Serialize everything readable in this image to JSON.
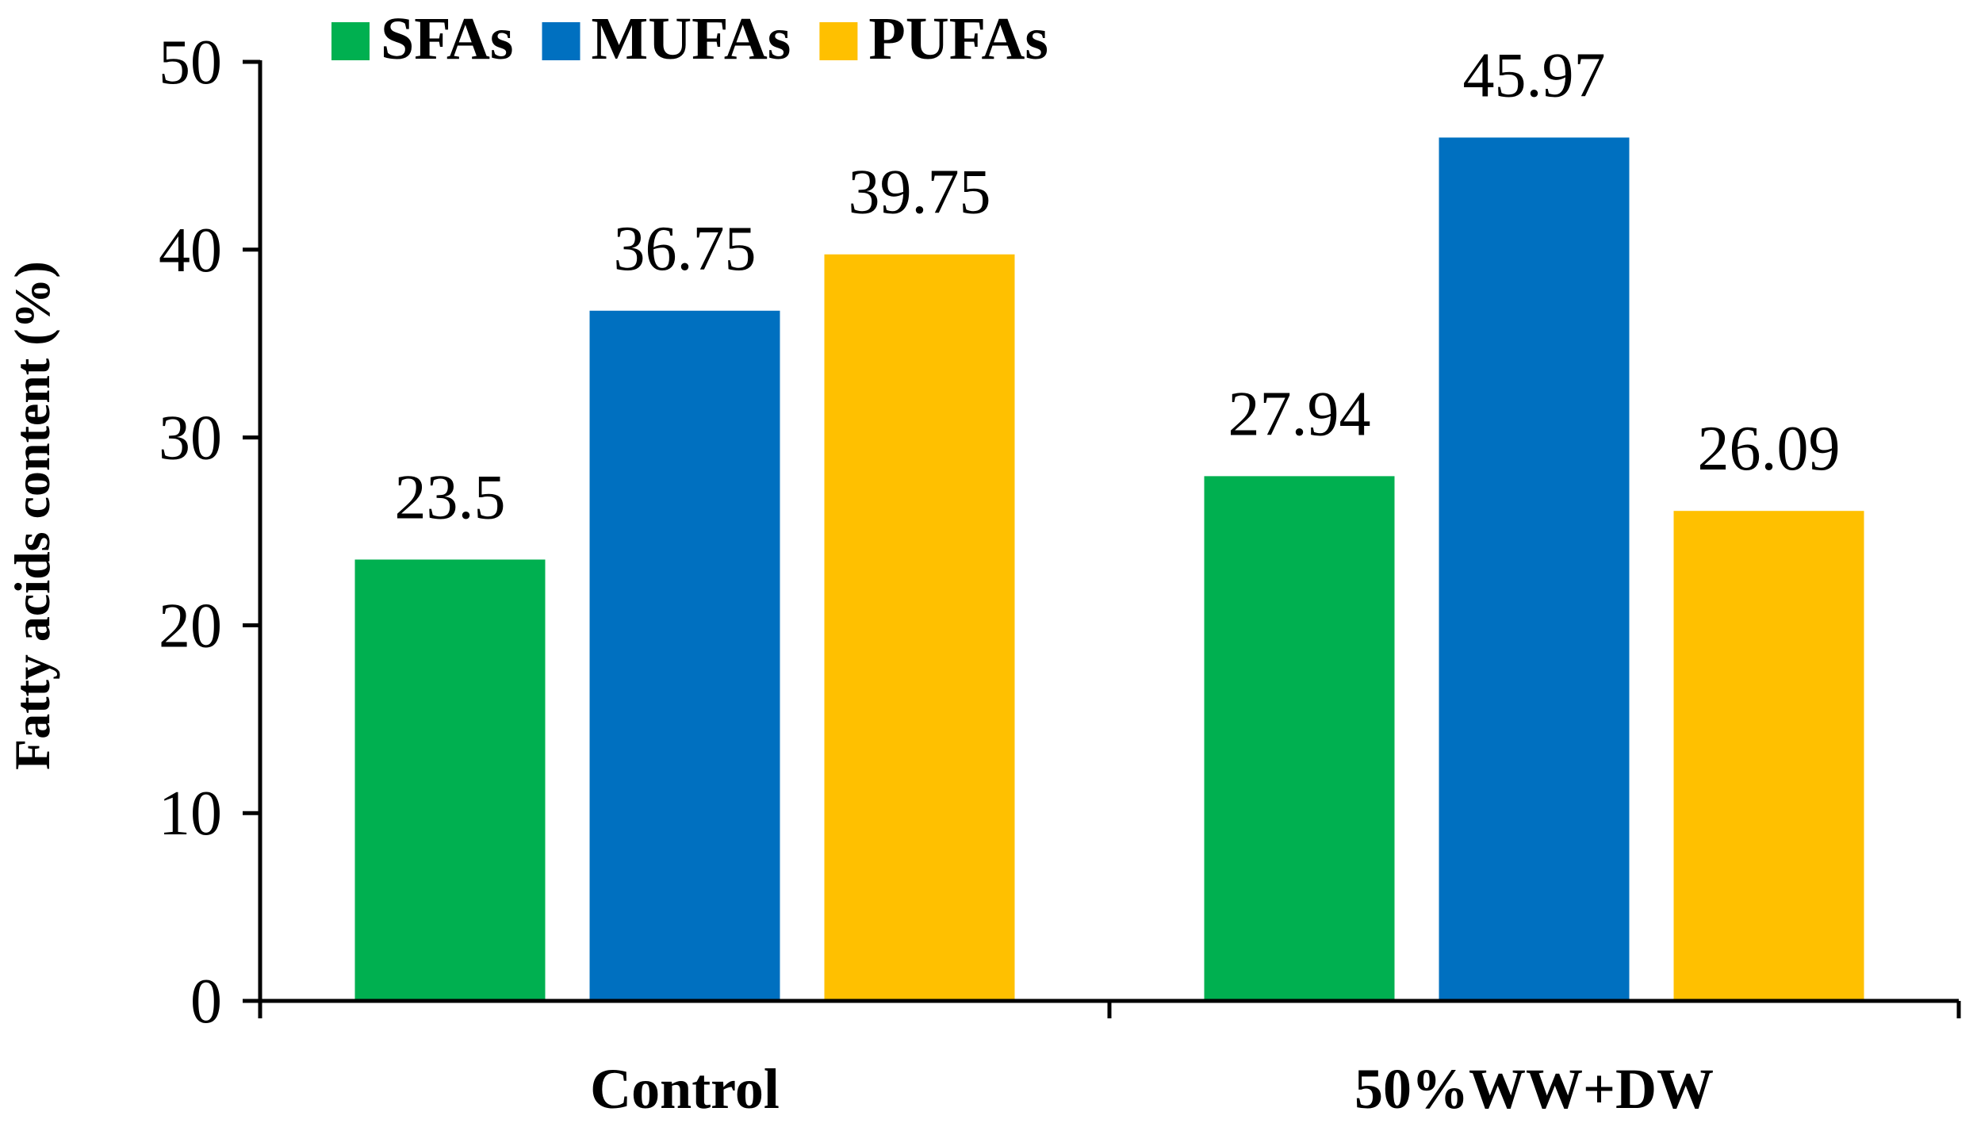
{
  "chart_data": {
    "type": "bar",
    "title": "",
    "xlabel": "",
    "ylabel": "Fatty acids content (%)",
    "ylim": [
      0,
      50
    ],
    "yticks": [
      0,
      10,
      20,
      30,
      40,
      50
    ],
    "legend_position": "top",
    "categories": [
      "Control",
      "50%WW+DW"
    ],
    "series": [
      {
        "name": "SFAs",
        "color": "#00B050",
        "values": [
          23.5,
          27.94
        ],
        "labels": [
          "23.5",
          "27.94"
        ]
      },
      {
        "name": "MUFAs",
        "color": "#0070C0",
        "values": [
          36.75,
          45.97
        ],
        "labels": [
          "36.75",
          "45.97"
        ]
      },
      {
        "name": "PUFAs",
        "color": "#FFC000",
        "values": [
          39.75,
          26.09
        ],
        "labels": [
          "39.75",
          "26.09"
        ]
      }
    ]
  }
}
